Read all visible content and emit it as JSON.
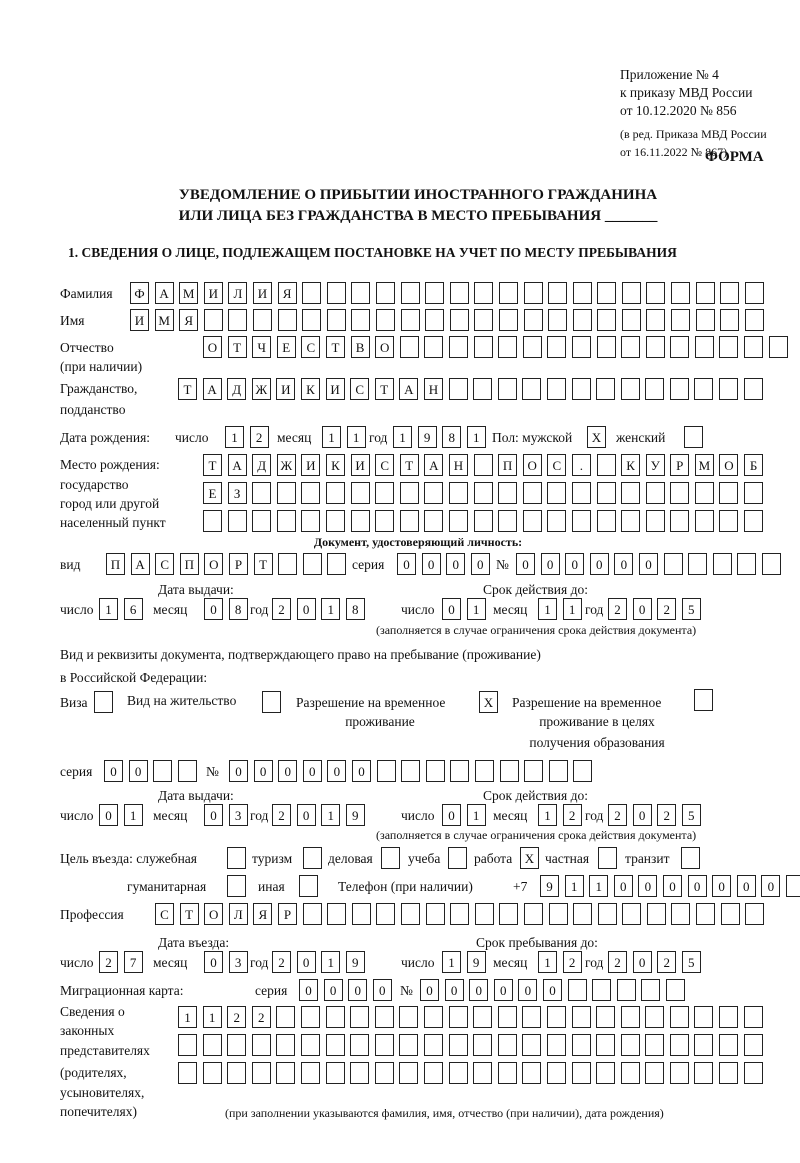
{
  "header": {
    "appendix": "Приложение № 4",
    "order": "к приказу МВД России",
    "order_date": "от 10.12.2020 № 856",
    "revision1": "(в ред. Приказа МВД России",
    "revision2": "от 16.11.2022 № 867)",
    "form_label": "ФОРМА",
    "title1": "УВЕДОМЛЕНИЕ О ПРИБЫТИИ ИНОСТРАННОГО ГРАЖДАНИНА",
    "title2": "ИЛИ ЛИЦА БЕЗ ГРАЖДАНСТВА В МЕСТО ПРЕБЫВАНИЯ _______",
    "section1": "1. СВЕДЕНИЯ О ЛИЦЕ, ПОДЛЕЖАЩЕМ ПОСТАНОВКЕ НА УЧЕТ ПО МЕСТУ ПРЕБЫВАНИЯ"
  },
  "labels": {
    "surname": "Фамилия",
    "name": "Имя",
    "patronymic": "Отчество",
    "patronymic_note": "(при наличии)",
    "citizenship1": "Гражданство,",
    "citizenship2": "подданство",
    "birth_date": "Дата рождения:",
    "day": "число",
    "month": "месяц",
    "year": "год",
    "sex": "Пол: мужской",
    "female": "женский",
    "birthplace1": "Место рождения:",
    "birthplace2": "государство",
    "birthplace3": "город или другой",
    "birthplace4": "населенный пункт",
    "id_doc": "Документ, удостоверяющий личность:",
    "kind": "вид",
    "series": "серия",
    "number": "№",
    "issue_date": "Дата выдачи:",
    "valid_until": "Срок действия до:",
    "validity_note": "(заполняется в случае ограничения срока действия документа)",
    "stay_doc1": "Вид и реквизиты документа, подтверждающего право на пребывание (проживание)",
    "stay_doc2": "в Российской Федерации:",
    "visa": "Виза",
    "residence": "Вид на жительство",
    "trp1": "Разрешение на временное",
    "trp2": "проживание",
    "trpe1": "Разрешение на временное",
    "trpe2": "проживание в целях",
    "trpe3": "получения образования",
    "purpose": "Цель въезда: служебная",
    "tourism": "туризм",
    "business": "деловая",
    "study": "учеба",
    "work": "работа",
    "private": "частная",
    "transit": "транзит",
    "humanitarian": "гуманитарная",
    "other": "иная",
    "phone": "Телефон (при наличии)",
    "phone_prefix": "+7",
    "profession": "Профессия",
    "entry_date": "Дата въезда:",
    "stay_until": "Срок пребывания до:",
    "migration_card": "Миграционная карта:",
    "rep1": "Сведения о",
    "rep2": "законных",
    "rep3": "представителях",
    "rep4": "(родителях,",
    "rep5": "усыновителях,",
    "rep6": "попечителях)",
    "rep_note": "(при заполнении указываются фамилия, имя, отчество (при наличии), дата рождения)"
  },
  "person": {
    "surname": [
      "Ф",
      "А",
      "М",
      "И",
      "Л",
      "И",
      "Я",
      "",
      "",
      "",
      "",
      "",
      "",
      "",
      "",
      "",
      "",
      "",
      "",
      "",
      "",
      "",
      "",
      "",
      "",
      ""
    ],
    "name": [
      "И",
      "М",
      "Я",
      "",
      "",
      "",
      "",
      "",
      "",
      "",
      "",
      "",
      "",
      "",
      "",
      "",
      "",
      "",
      "",
      "",
      "",
      "",
      "",
      "",
      "",
      ""
    ],
    "patronymic": [
      "О",
      "Т",
      "Ч",
      "Е",
      "С",
      "Т",
      "В",
      "О",
      "",
      "",
      "",
      "",
      "",
      "",
      "",
      "",
      "",
      "",
      "",
      "",
      "",
      "",
      "",
      ""
    ],
    "citizenship": [
      "Т",
      "А",
      "Д",
      "Ж",
      "И",
      "К",
      "И",
      "С",
      "Т",
      "А",
      "Н",
      "",
      "",
      "",
      "",
      "",
      "",
      "",
      "",
      "",
      "",
      "",
      "",
      ""
    ],
    "birth_day": [
      "1",
      "2"
    ],
    "birth_month": [
      "1",
      "1"
    ],
    "birth_year": [
      "1",
      "9",
      "8",
      "1"
    ],
    "male": [
      "X"
    ],
    "female": [
      ""
    ],
    "birthplace_row1": [
      "Т",
      "А",
      "Д",
      "Ж",
      "И",
      "К",
      "И",
      "С",
      "Т",
      "А",
      "Н",
      "",
      "П",
      "О",
      "С",
      ".",
      "",
      "К",
      "У",
      "Р",
      "М",
      "О",
      "Б"
    ],
    "birthplace_row2": [
      "Е",
      "З",
      "",
      "",
      "",
      "",
      "",
      "",
      "",
      "",
      "",
      "",
      "",
      "",
      "",
      "",
      "",
      "",
      "",
      "",
      "",
      "",
      ""
    ],
    "birthplace_row3": [
      "",
      "",
      "",
      "",
      "",
      "",
      "",
      "",
      "",
      "",
      "",
      "",
      "",
      "",
      "",
      "",
      "",
      "",
      "",
      "",
      "",
      "",
      ""
    ]
  },
  "id_document": {
    "kind": [
      "П",
      "А",
      "С",
      "П",
      "О",
      "Р",
      "Т",
      "",
      "",
      ""
    ],
    "series": [
      "0",
      "0",
      "0",
      "0"
    ],
    "number": [
      "0",
      "0",
      "0",
      "0",
      "0",
      "0",
      "",
      "",
      "",
      "",
      ""
    ],
    "issue_day": [
      "1",
      "6"
    ],
    "issue_month": [
      "0",
      "8"
    ],
    "issue_year": [
      "2",
      "0",
      "1",
      "8"
    ],
    "valid_day": [
      "0",
      "1"
    ],
    "valid_month": [
      "1",
      "1"
    ],
    "valid_year": [
      "2",
      "0",
      "2",
      "5"
    ]
  },
  "stay_document": {
    "visa": [
      ""
    ],
    "residence": [
      ""
    ],
    "trp": [
      "X"
    ],
    "trp_education": [
      ""
    ],
    "series": [
      "0",
      "0",
      "",
      ""
    ],
    "number": [
      "0",
      "0",
      "0",
      "0",
      "0",
      "0",
      "",
      "",
      "",
      "",
      "",
      "",
      "",
      "",
      ""
    ],
    "issue_day": [
      "0",
      "1"
    ],
    "issue_month": [
      "0",
      "3"
    ],
    "issue_year": [
      "2",
      "0",
      "1",
      "9"
    ],
    "valid_day": [
      "0",
      "1"
    ],
    "valid_month": [
      "1",
      "2"
    ],
    "valid_year": [
      "2",
      "0",
      "2",
      "5"
    ]
  },
  "purpose": {
    "official": [
      ""
    ],
    "tourism": [
      ""
    ],
    "business": [
      ""
    ],
    "study": [
      ""
    ],
    "work": [
      "X"
    ],
    "private": [
      ""
    ],
    "transit": [
      ""
    ],
    "humanitarian": [
      ""
    ],
    "other": [
      ""
    ]
  },
  "phone": [
    "9",
    "1",
    "1",
    "0",
    "0",
    "0",
    "0",
    "0",
    "0",
    "0",
    ""
  ],
  "profession": [
    "С",
    "Т",
    "О",
    "Л",
    "Я",
    "Р",
    "",
    "",
    "",
    "",
    "",
    "",
    "",
    "",
    "",
    "",
    "",
    "",
    "",
    "",
    "",
    "",
    "",
    "",
    ""
  ],
  "entry": {
    "day": [
      "2",
      "7"
    ],
    "month": [
      "0",
      "3"
    ],
    "year": [
      "2",
      "0",
      "1",
      "9"
    ],
    "stay_day": [
      "1",
      "9"
    ],
    "stay_month": [
      "1",
      "2"
    ],
    "stay_year": [
      "2",
      "0",
      "2",
      "5"
    ]
  },
  "migration_card": {
    "series": [
      "0",
      "0",
      "0",
      "0"
    ],
    "number": [
      "0",
      "0",
      "0",
      "0",
      "0",
      "0",
      "",
      "",
      "",
      "",
      ""
    ]
  },
  "representatives": {
    "row1": [
      "1",
      "1",
      "2",
      "2",
      "",
      "",
      "",
      "",
      "",
      "",
      "",
      "",
      "",
      "",
      "",
      "",
      "",
      "",
      "",
      "",
      "",
      "",
      "",
      ""
    ],
    "row2": [
      "",
      "",
      "",
      "",
      "",
      "",
      "",
      "",
      "",
      "",
      "",
      "",
      "",
      "",
      "",
      "",
      "",
      "",
      "",
      "",
      "",
      "",
      "",
      ""
    ],
    "row3": [
      "",
      "",
      "",
      "",
      "",
      "",
      "",
      "",
      "",
      "",
      "",
      "",
      "",
      "",
      "",
      "",
      "",
      "",
      "",
      "",
      "",
      "",
      "",
      ""
    ]
  }
}
